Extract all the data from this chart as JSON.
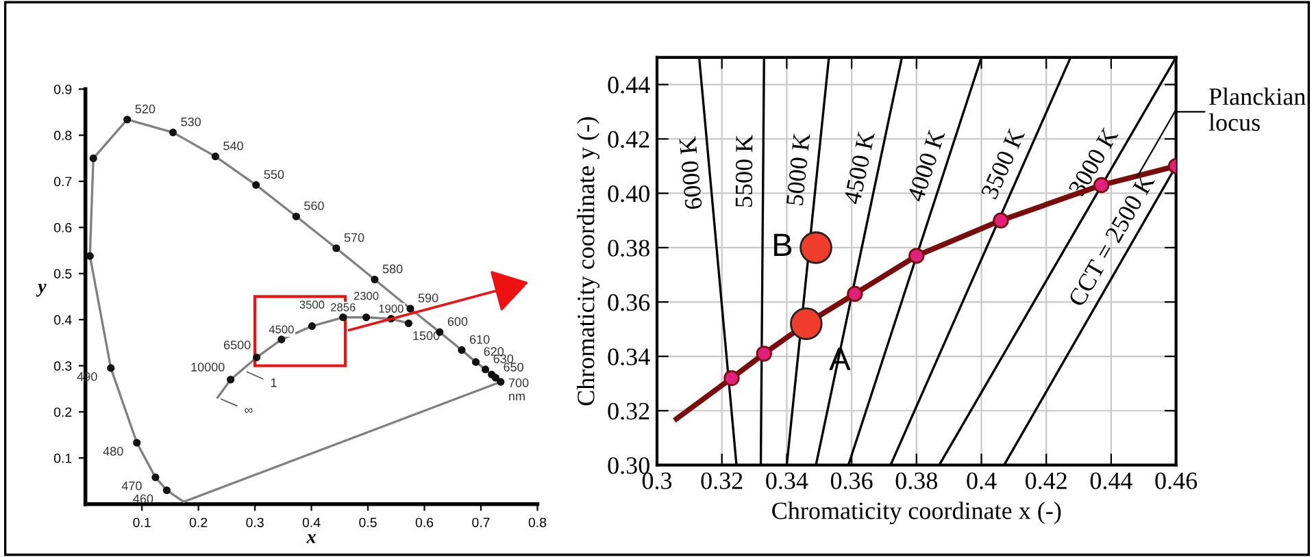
{
  "chart_data": [
    {
      "type": "line",
      "xlabel": "x",
      "ylabel": "y",
      "xlim": [
        0,
        0.8
      ],
      "ylim": [
        0,
        0.9
      ],
      "grid": false,
      "xticks": [
        0.1,
        0.2,
        0.3,
        0.4,
        0.5,
        0.6,
        0.7,
        0.8
      ],
      "yticks": [
        0.1,
        0.2,
        0.3,
        0.4,
        0.5,
        0.6,
        0.7,
        0.8,
        0.9
      ],
      "series": [
        {
          "type": "line",
          "color": "#808080",
          "x": [
            0.174,
            0.144,
            0.124,
            0.091,
            0.045,
            0.008,
            0.014,
            0.074,
            0.155,
            0.23,
            0.302,
            0.373,
            0.444,
            0.512,
            0.575,
            0.627,
            0.666,
            0.691,
            0.708,
            0.719,
            0.726,
            0.735
          ],
          "values": [
            0.005,
            0.03,
            0.058,
            0.133,
            0.295,
            0.538,
            0.75,
            0.834,
            0.806,
            0.754,
            0.692,
            0.624,
            0.555,
            0.487,
            0.424,
            0.373,
            0.334,
            0.308,
            0.292,
            0.281,
            0.274,
            0.265
          ]
        },
        {
          "type": "line",
          "color": "#808080",
          "x": [
            0.174,
            0.735
          ],
          "values": [
            0.005,
            0.265
          ]
        },
        {
          "type": "scatter",
          "color": "#111111",
          "x": [
            0.144,
            0.124,
            0.091,
            0.045,
            0.008,
            0.014,
            0.074,
            0.155,
            0.23,
            0.302,
            0.373,
            0.444,
            0.512,
            0.575,
            0.627,
            0.666,
            0.691,
            0.708,
            0.719,
            0.726,
            0.735
          ],
          "values": [
            0.03,
            0.058,
            0.133,
            0.295,
            0.538,
            0.75,
            0.834,
            0.806,
            0.754,
            0.692,
            0.624,
            0.555,
            0.487,
            0.424,
            0.373,
            0.334,
            0.308,
            0.292,
            0.281,
            0.274,
            0.265
          ]
        },
        {
          "type": "line",
          "color": "#808080",
          "x": [
            0.234,
            0.257,
            0.303,
            0.347,
            0.401,
            0.456,
            0.497,
            0.541,
            0.572
          ],
          "values": [
            0.231,
            0.27,
            0.318,
            0.357,
            0.386,
            0.405,
            0.405,
            0.402,
            0.392
          ]
        },
        {
          "type": "scatter",
          "color": "#111111",
          "x": [
            0.257,
            0.303,
            0.347,
            0.401,
            0.456,
            0.497,
            0.541,
            0.572
          ],
          "values": [
            0.27,
            0.318,
            0.357,
            0.386,
            0.405,
            0.405,
            0.402,
            0.392
          ]
        }
      ],
      "annotations": [
        {
          "text": "460",
          "x": 0.144,
          "y": 0.03
        },
        {
          "text": "470",
          "x": 0.124,
          "y": 0.058
        },
        {
          "text": "480",
          "x": 0.091,
          "y": 0.133
        },
        {
          "text": "490",
          "x": 0.045,
          "y": 0.295
        },
        {
          "text": "520",
          "x": 0.074,
          "y": 0.834
        },
        {
          "text": "530",
          "x": 0.155,
          "y": 0.806
        },
        {
          "text": "540",
          "x": 0.23,
          "y": 0.754
        },
        {
          "text": "550",
          "x": 0.302,
          "y": 0.692
        },
        {
          "text": "560",
          "x": 0.373,
          "y": 0.624
        },
        {
          "text": "570",
          "x": 0.444,
          "y": 0.555
        },
        {
          "text": "580",
          "x": 0.512,
          "y": 0.487
        },
        {
          "text": "590",
          "x": 0.575,
          "y": 0.424
        },
        {
          "text": "600",
          "x": 0.627,
          "y": 0.373
        },
        {
          "text": "610",
          "x": 0.666,
          "y": 0.334
        },
        {
          "text": "620",
          "x": 0.691,
          "y": 0.308
        },
        {
          "text": "630",
          "x": 0.708,
          "y": 0.292
        },
        {
          "text": "650",
          "x": 0.726,
          "y": 0.274
        },
        {
          "text": "700\nnm",
          "x": 0.735,
          "y": 0.265
        },
        {
          "text": "10000",
          "x": 0.257,
          "y": 0.27
        },
        {
          "text": "6500",
          "x": 0.303,
          "y": 0.318
        },
        {
          "text": "4500",
          "x": 0.347,
          "y": 0.357
        },
        {
          "text": "3500",
          "x": 0.401,
          "y": 0.386
        },
        {
          "text": "2856",
          "x": 0.456,
          "y": 0.405
        },
        {
          "text": "2300",
          "x": 0.497,
          "y": 0.405
        },
        {
          "text": "1900",
          "x": 0.541,
          "y": 0.402
        },
        {
          "text": "1500",
          "x": 0.572,
          "y": 0.392
        },
        {
          "text": "∞",
          "x": 0.234,
          "y": 0.231
        },
        {
          "text": "1",
          "x": 0.28,
          "y": 0.29
        }
      ]
    },
    {
      "type": "line",
      "xlabel": "Chromaticity coordinate x (-)",
      "ylabel": "Chromaticity coordinate y (-)",
      "xlim": [
        0.3,
        0.46
      ],
      "ylim": [
        0.3,
        0.45
      ],
      "grid": true,
      "xticks": [
        0.3,
        0.32,
        0.34,
        0.36,
        0.38,
        0.4,
        0.42,
        0.44,
        0.46
      ],
      "yticks": [
        {
          "value": 0.3,
          "label": "0.30"
        },
        {
          "value": 0.32,
          "label": "0.32"
        },
        {
          "value": 0.34,
          "label": "0.34"
        },
        {
          "value": 0.36,
          "label": "0.36"
        },
        {
          "value": 0.38,
          "label": "0.38"
        },
        {
          "value": 0.4,
          "label": "0.40"
        },
        {
          "value": 0.42,
          "label": "0.42"
        },
        {
          "value": 0.44,
          "label": "0.44"
        }
      ],
      "series": [
        {
          "type": "line",
          "name": "6000 K",
          "color": "#000000",
          "x": [
            0.3245,
            0.313
          ],
          "values": [
            0.3,
            0.45
          ]
        },
        {
          "type": "line",
          "name": "5500 K",
          "color": "#000000",
          "x": [
            0.332,
            0.333
          ],
          "values": [
            0.3,
            0.45
          ]
        },
        {
          "type": "line",
          "name": "5000 K",
          "color": "#000000",
          "x": [
            0.34,
            0.353
          ],
          "values": [
            0.3,
            0.45
          ]
        },
        {
          "type": "line",
          "name": "4500 K",
          "color": "#000000",
          "x": [
            0.349,
            0.3755
          ],
          "values": [
            0.3,
            0.45
          ]
        },
        {
          "type": "line",
          "name": "4000 K",
          "color": "#000000",
          "x": [
            0.359,
            0.4
          ],
          "values": [
            0.3,
            0.45
          ]
        },
        {
          "type": "line",
          "name": "3500 K",
          "color": "#000000",
          "x": [
            0.372,
            0.4275
          ],
          "values": [
            0.3,
            0.45
          ]
        },
        {
          "type": "line",
          "name": "3000 K",
          "color": "#000000",
          "x": [
            0.387,
            0.46
          ],
          "values": [
            0.3,
            0.45
          ]
        },
        {
          "type": "line",
          "name": "CCT = 2500 K",
          "color": "#000000",
          "x": [
            0.407,
            0.46
          ],
          "values": [
            0.3,
            0.41
          ]
        },
        {
          "type": "line",
          "color": "#7b0c0c",
          "x": [
            0.306,
            0.323,
            0.333,
            0.346,
            0.361,
            0.38,
            0.406,
            0.437,
            0.46
          ],
          "values": [
            0.317,
            0.332,
            0.341,
            0.352,
            0.363,
            0.377,
            0.39,
            0.403,
            0.41
          ]
        },
        {
          "type": "scatter",
          "color": "#e0207a",
          "x": [
            0.323,
            0.333,
            0.361,
            0.38,
            0.406,
            0.437,
            0.46
          ],
          "values": [
            0.332,
            0.341,
            0.363,
            0.377,
            0.39,
            0.403,
            0.41
          ]
        },
        {
          "type": "scatter",
          "name": "A",
          "color": "#f03c2a",
          "x": [
            0.346
          ],
          "values": [
            0.352
          ]
        },
        {
          "type": "scatter",
          "name": "B",
          "color": "#f03c2a",
          "x": [
            0.349
          ],
          "values": [
            0.38
          ]
        }
      ],
      "annotations": [
        {
          "text": "Planckian\nlocus",
          "x": 0.448,
          "y": 0.406
        }
      ]
    }
  ]
}
